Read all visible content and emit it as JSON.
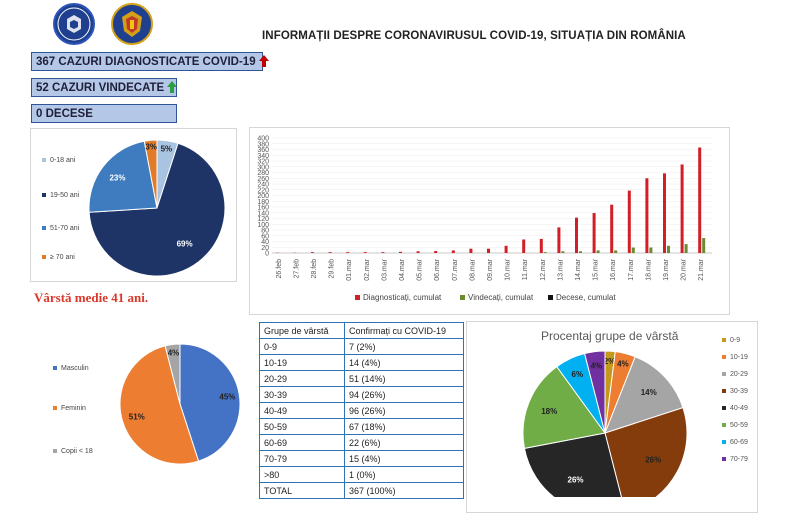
{
  "header": {
    "title": "INFORMAȚII DESPRE CORONAVIRUSUL COVID-19, SITUAȚIA DIN ROMÂNIA",
    "logo_left": "GUVERNUL ROMÂNIEI",
    "logo_right": "coat-of-arms"
  },
  "stats": {
    "diagnosed": "367 CAZURI DIAGNOSTICATE COVID-19",
    "recovered": "52 CAZURI VINDECATE",
    "deaths": "0 DECESE",
    "colors": {
      "up_red": "#c00000",
      "up_green": "#2e9e45"
    }
  },
  "age_average": "Vârstă medie 41 ani.",
  "chart_data": [
    {
      "type": "pie",
      "title": "",
      "categories": [
        "0-18 ani",
        "19-50 ani",
        "51-70 ani",
        "≥ 70 ani"
      ],
      "values": [
        5,
        69,
        23,
        3
      ],
      "labels": [
        "5%",
        "69%",
        "23%",
        "3%"
      ],
      "colors": [
        "#a9c4e0",
        "#1f3466",
        "#3e7bbf",
        "#e07b2a"
      ]
    },
    {
      "type": "bar",
      "title": "",
      "categories": [
        "26.feb",
        "27.feb",
        "28.feb",
        "29.feb",
        "01.mar",
        "02.mar",
        "03.mar",
        "04.mar",
        "05.mar",
        "06.mar",
        "07.mar",
        "08.mar",
        "09.mar",
        "10.mar",
        "11.mar",
        "12.mar",
        "13.mar",
        "14.mar",
        "15.mar",
        "16.mar",
        "17.mar",
        "18.mar",
        "19.mar",
        "20.mar",
        "21.mar"
      ],
      "series": [
        {
          "name": "Diagnosticați, cumulat",
          "color": "#d21f26",
          "values": [
            1,
            1,
            3,
            3,
            3,
            3,
            3,
            4,
            6,
            7,
            9,
            15,
            15,
            25,
            47,
            49,
            89,
            123,
            139,
            168,
            217,
            260,
            277,
            308,
            367
          ]
        },
        {
          "name": "Vindecați, cumulat",
          "color": "#6c8a2e",
          "values": [
            0,
            0,
            0,
            0,
            0,
            0,
            0,
            0,
            0,
            0,
            0,
            0,
            0,
            0,
            0,
            3,
            6,
            6,
            9,
            9,
            19,
            19,
            25,
            31,
            52
          ]
        },
        {
          "name": "Decese, cumulat",
          "color": "#111111",
          "values": [
            0,
            0,
            0,
            0,
            0,
            0,
            0,
            0,
            0,
            0,
            0,
            0,
            0,
            0,
            0,
            0,
            0,
            0,
            0,
            0,
            0,
            0,
            0,
            0,
            0
          ]
        }
      ],
      "yticks": [
        0,
        20,
        40,
        60,
        80,
        100,
        120,
        140,
        160,
        180,
        200,
        220,
        240,
        260,
        280,
        300,
        320,
        340,
        360,
        380,
        400
      ],
      "ylim": [
        0,
        400
      ]
    },
    {
      "type": "pie",
      "title": "",
      "categories": [
        "Masculin",
        "Feminin",
        "Copii < 18"
      ],
      "values": [
        45,
        51,
        4
      ],
      "labels": [
        "45%",
        "51%",
        "4%"
      ],
      "colors": [
        "#4472c4",
        "#ed7d31",
        "#a5a5a5"
      ]
    },
    {
      "type": "pie",
      "title": "Procentaj grupe de vârstă",
      "categories": [
        "0-9",
        "10-19",
        "20-29",
        "30-39",
        "40-49",
        "50-59",
        "60-69",
        "70-79"
      ],
      "values": [
        2,
        4,
        14,
        26,
        26,
        18,
        6,
        4
      ],
      "labels": [
        "2%",
        "4%",
        "14%",
        "26%",
        "26%",
        "18%",
        "6%",
        "4%"
      ],
      "colors": [
        "#c59a1a",
        "#ed7d31",
        "#a5a5a5",
        "#843c0c",
        "#262626",
        "#70ad47",
        "#00b0f0",
        "#7030a0"
      ]
    },
    {
      "type": "table",
      "title": "",
      "columns": [
        "Grupe de vârstă",
        "Confirmați cu COVID-19"
      ],
      "rows": [
        [
          "0-9",
          "7 (2%)"
        ],
        [
          "10-19",
          "14 (4%)"
        ],
        [
          "20-29",
          "51 (14%)"
        ],
        [
          "30-39",
          "94 (26%)"
        ],
        [
          "40-49",
          "96 (26%)"
        ],
        [
          "50-59",
          "67 (18%)"
        ],
        [
          "60-69",
          "22 (6%)"
        ],
        [
          "70-79",
          "15 (4%)"
        ],
        [
          ">80",
          "1 (0%)"
        ],
        [
          "TOTAL",
          "367 (100%)"
        ]
      ]
    }
  ]
}
